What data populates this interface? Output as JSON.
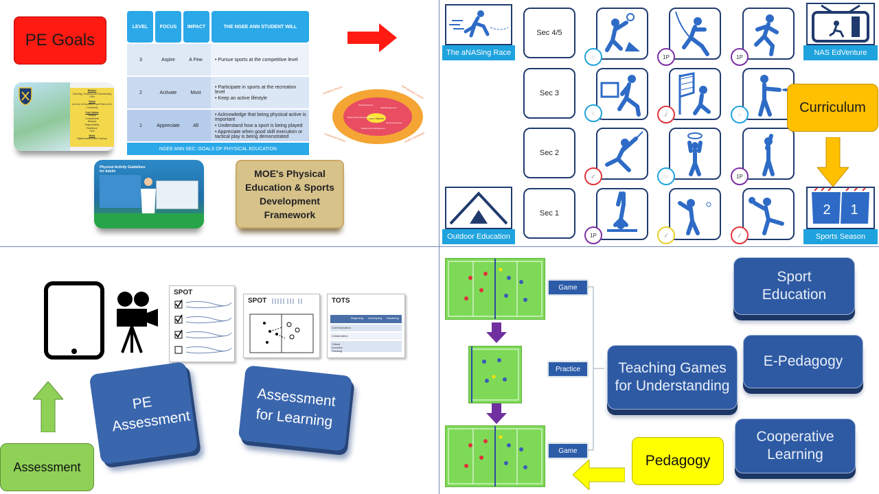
{
  "quadrant1": {
    "pe_goals_label": "PE Goals",
    "table": {
      "headers": [
        "LEVEL",
        "FOCUS",
        "IMPACT",
        "THE NGEE ANN STUDENT WILL"
      ],
      "rows": [
        {
          "level": "3",
          "focus": "Aspire",
          "impact": "A Few",
          "will": [
            "Pursue sports at the competitive level"
          ]
        },
        {
          "level": "2",
          "focus": "Activate",
          "impact": "Most",
          "will": [
            "Participate in sports at the recreation level",
            "Keep an active lifestyle"
          ]
        },
        {
          "level": "1",
          "focus": "Appreciate",
          "impact": "All",
          "will": [
            "Acknowledge that being physical active is important",
            "Understand how a sport is being played",
            "Appreciate when good skill execution or tactical play is being demonstrated"
          ]
        }
      ],
      "footer": "NGEE ANN SEC: GOALS OF PHYSICAL EDUCATION"
    },
    "vision_card": {
      "mission_title": "Mission",
      "mission_text": "Teaching, Touching and Transforming Lives",
      "vision_title": "Vision",
      "vision_text": "An Icon of Excellence and Pride of the Community",
      "values_title": "Core Values",
      "values": [
        "Integrity",
        "Commitment",
        "Respect",
        "Responsibility",
        "Resilience",
        "Care"
      ],
      "motto_title": "Motto",
      "motto_text": "Righteousness and Courtesy"
    },
    "physical_card": {
      "title": "Physical Activity Guidelines for Adults"
    },
    "moe_label": "MOE's Physical Education & Sports Development Framework",
    "core_wheel": {
      "center": "Core Values",
      "inner": [
        "Self-Awareness",
        "Self-Management",
        "Social Awareness",
        "Relationship Management",
        "Responsible Decision Making"
      ],
      "outer": [
        "Confident Person",
        "Self-directed Learner",
        "Active Contributor",
        "Concerned Citizen"
      ]
    },
    "arrow_color": "#ff1a12"
  },
  "quadrant2": {
    "rows": [
      "Sec 4/5",
      "Sec 3",
      "Sec 2",
      "Sec 1"
    ],
    "race_label": "The aNASing Race",
    "edventure_label": "NAS EdVenture",
    "outdoor_label": "Outdoor Education",
    "curriculum_label": "Curriculum",
    "sports_season_label": "Sports Season",
    "season_numbers": [
      "2",
      "1"
    ],
    "badges": {
      "ip": "1P"
    },
    "icons": [
      "badminton-icon",
      "gymnastics-rope-icon",
      "dodgeball-icon",
      "floorball-icon",
      "volleyball-icon",
      "frisbee-icon",
      "fencing-icon",
      "netball-icon",
      "softball-icon",
      "handstand-icon",
      "baseball-icon",
      "tennis-icon"
    ]
  },
  "quadrant3": {
    "spot_checklist_title": "SPOT",
    "spot_field_title": "SPOT",
    "tots_title": "TOTS",
    "tots_columns": [
      "Beginning",
      "Developing",
      "Mastering"
    ],
    "tots_rows": [
      "Communication",
      "Collaboration",
      "Critical Inventive Thinking"
    ],
    "pe_assessment": "PE Assessment",
    "afl": "Assessment for Learning",
    "assessment_label": "Assessment"
  },
  "quadrant4": {
    "steps": [
      "Game",
      "Practice",
      "Game"
    ],
    "sport_education": "Sport Education",
    "tgfu": "Teaching Games for Understanding",
    "epedagogy": "E-Pedagogy",
    "cooperative": "Cooperative Learning",
    "pedagogy_label": "Pedagogy"
  }
}
